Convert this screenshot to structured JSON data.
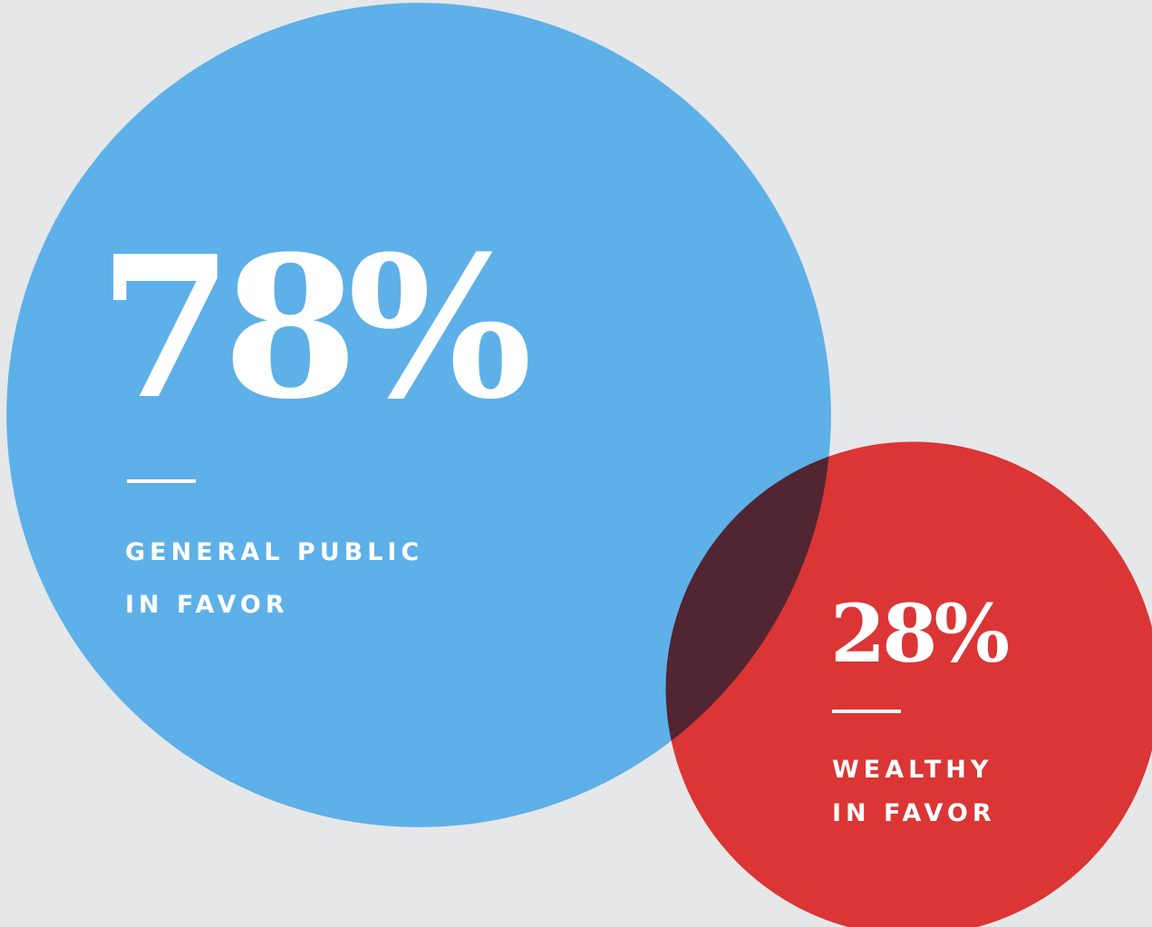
{
  "chart_data": {
    "type": "bubble",
    "categories": [
      [
        "GENERAL PUBLIC",
        "IN FAVOR"
      ],
      [
        "WEALTHY",
        "IN FAVOR"
      ]
    ],
    "values": [
      78,
      28
    ],
    "value_labels": [
      "78%",
      "28%"
    ],
    "colors": [
      "#5eb0e8",
      "#db3535"
    ]
  }
}
